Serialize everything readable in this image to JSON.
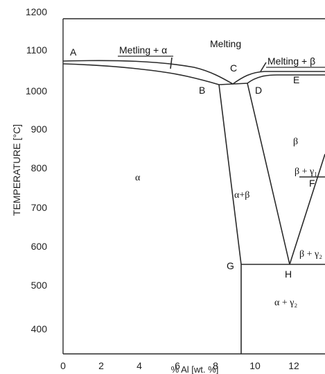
{
  "axes": {
    "ylabel": "TEMPERATURE [°C]",
    "xlabel": "% Al [wt. %]",
    "x_ticks": [
      "0",
      "2",
      "4",
      "6",
      "8",
      "10",
      "12"
    ],
    "y_ticks": [
      "1200",
      "1100",
      "1000",
      "900",
      "800",
      "700",
      "600",
      "500",
      "400"
    ]
  },
  "points": {
    "A": "A",
    "B": "B",
    "C": "C",
    "D": "D",
    "E": "E",
    "F": "F",
    "G": "G",
    "H": "H"
  },
  "regions": {
    "melting": "Melting",
    "melting_alpha": "Metling + α",
    "melting_beta": "Melting + β",
    "alpha": "α",
    "alpha_beta": "α+β",
    "beta": "β",
    "beta_gamma1": "β + γ₁",
    "beta_gamma2": "β + γ₂",
    "alpha_gamma2": "α + γ₂"
  },
  "colors": {
    "line": "#2a2a2a",
    "text": "#111111"
  }
}
